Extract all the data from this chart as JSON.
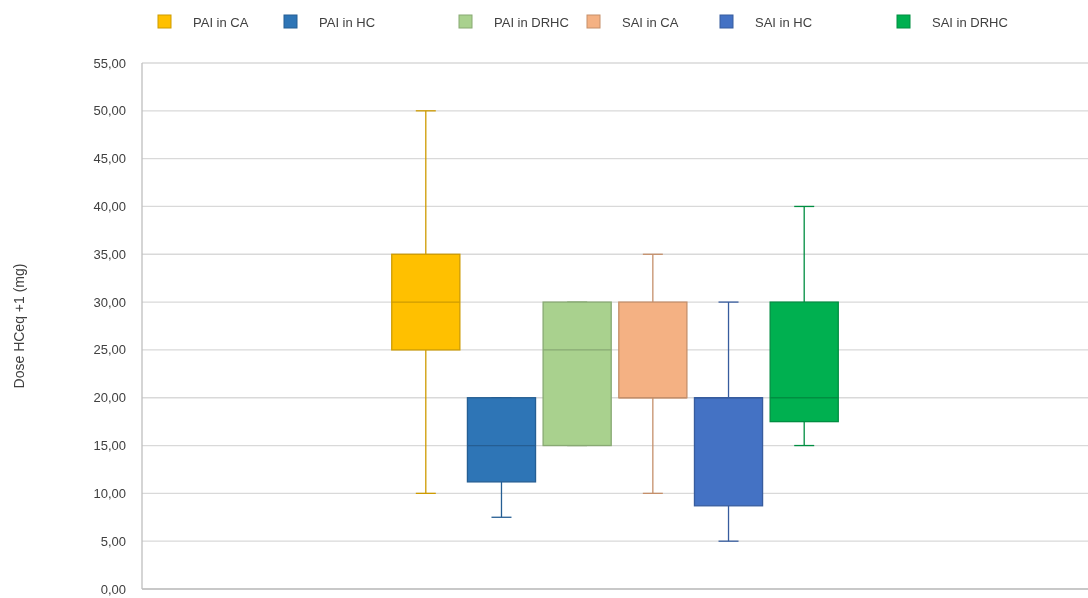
{
  "chart_data": {
    "type": "box",
    "ylabel": "Dose  HCeq +1 (mg)",
    "categories": [
      null
    ],
    "ylim": [
      0,
      55
    ],
    "yticks": [
      {
        "value": 0,
        "label": "0,00"
      },
      {
        "value": 5,
        "label": "5,00"
      },
      {
        "value": 10,
        "label": "10,00"
      },
      {
        "value": 15,
        "label": "15,00"
      },
      {
        "value": 20,
        "label": "20,00"
      },
      {
        "value": 25,
        "label": "25,00"
      },
      {
        "value": 30,
        "label": "30,00"
      },
      {
        "value": 35,
        "label": "35,00"
      },
      {
        "value": 40,
        "label": "40,00"
      },
      {
        "value": 45,
        "label": "45,00"
      },
      {
        "value": 50,
        "label": "50,00"
      },
      {
        "value": 55,
        "label": "55,00"
      }
    ],
    "grid": "y",
    "legend": "top",
    "series": [
      {
        "name": "PAI in CA",
        "color": "#ffc000",
        "boxes": [
          {
            "low": 10,
            "q1": 25,
            "median": 30,
            "q3": 35,
            "high": 50
          }
        ]
      },
      {
        "name": "PAI in HC",
        "color": "#2e75b6",
        "boxes": [
          {
            "low": 7.5,
            "q1": 11.2,
            "median": 15,
            "q3": 20,
            "high": 20
          }
        ]
      },
      {
        "name": "PAI in DRHC",
        "color": "#a9d18e",
        "boxes": [
          {
            "low": 15,
            "q1": 15,
            "median": 25,
            "q3": 30,
            "high": 30
          }
        ]
      },
      {
        "name": "SAI in CA",
        "color": "#f4b183",
        "boxes": [
          {
            "low": 10,
            "q1": 20,
            "median": 20,
            "q3": 30,
            "high": 35
          }
        ]
      },
      {
        "name": "SAI in HC",
        "color": "#4472c4",
        "boxes": [
          {
            "low": 5,
            "q1": 8.7,
            "median": 20,
            "q3": 20,
            "high": 30
          }
        ]
      },
      {
        "name": "SAI in DRHC",
        "color": "#00b050",
        "boxes": [
          {
            "low": 15,
            "q1": 17.5,
            "median": 20,
            "q3": 30,
            "high": 40
          }
        ]
      }
    ]
  }
}
